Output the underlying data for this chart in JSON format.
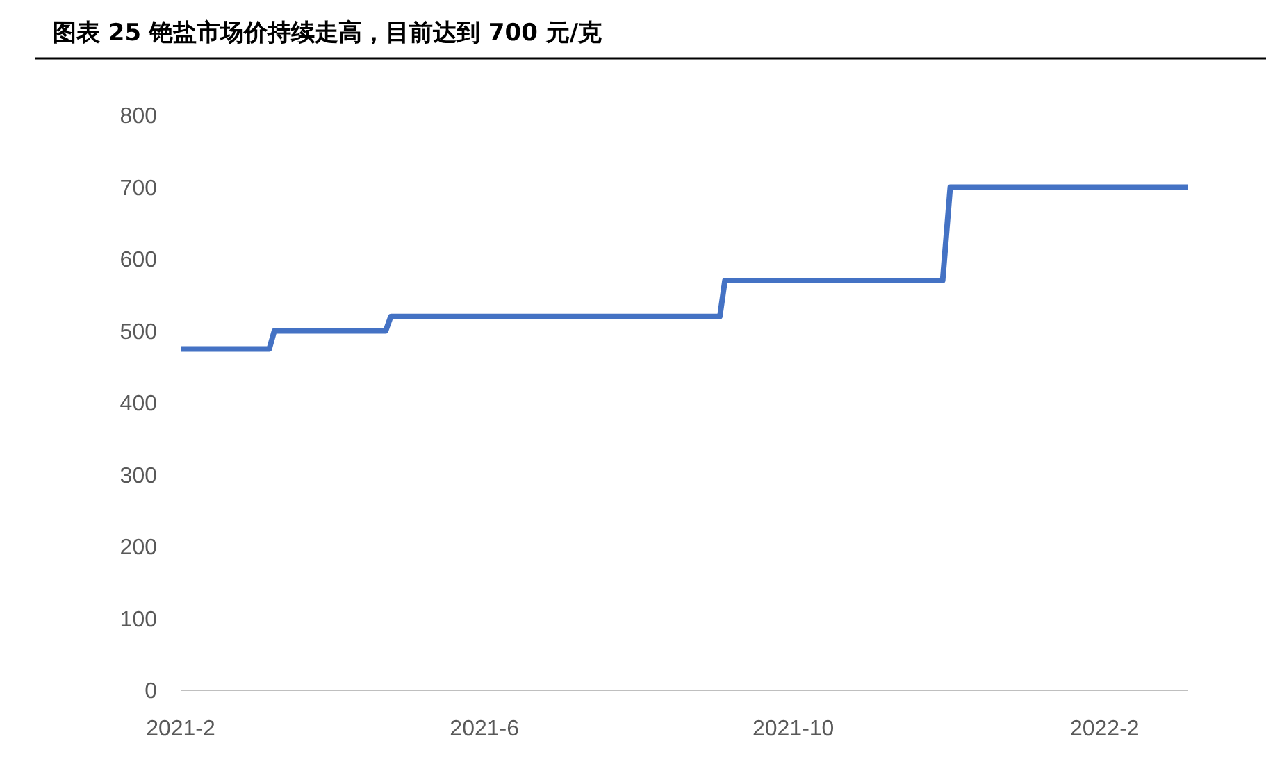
{
  "chart_data": {
    "type": "line",
    "title": "图表 25 铯盐市场价持续走高，目前达到 700 元/克",
    "x": [
      "2021-02-01",
      "2021-03-08",
      "2021-03-10",
      "2021-04-23",
      "2021-04-25",
      "2021-09-02",
      "2021-09-04",
      "2021-11-29",
      "2021-12-02",
      "2022-03-06"
    ],
    "series": [
      {
        "color": "#4472c4",
        "values": [
          475,
          475,
          500,
          500,
          520,
          520,
          570,
          570,
          700,
          700
        ]
      }
    ],
    "xlim": [
      "2021-02-01",
      "2022-03-06"
    ],
    "xticks": [
      {
        "value": "2021-02",
        "label": "2021-2"
      },
      {
        "value": "2021-06",
        "label": "2021-6"
      },
      {
        "value": "2021-10",
        "label": "2021-10"
      },
      {
        "value": "2022-02",
        "label": "2022-2"
      }
    ],
    "ylim": [
      0,
      800
    ],
    "yticks": [
      0,
      100,
      200,
      300,
      400,
      500,
      600,
      700,
      800
    ],
    "marker": "none",
    "line_style": "solid"
  }
}
